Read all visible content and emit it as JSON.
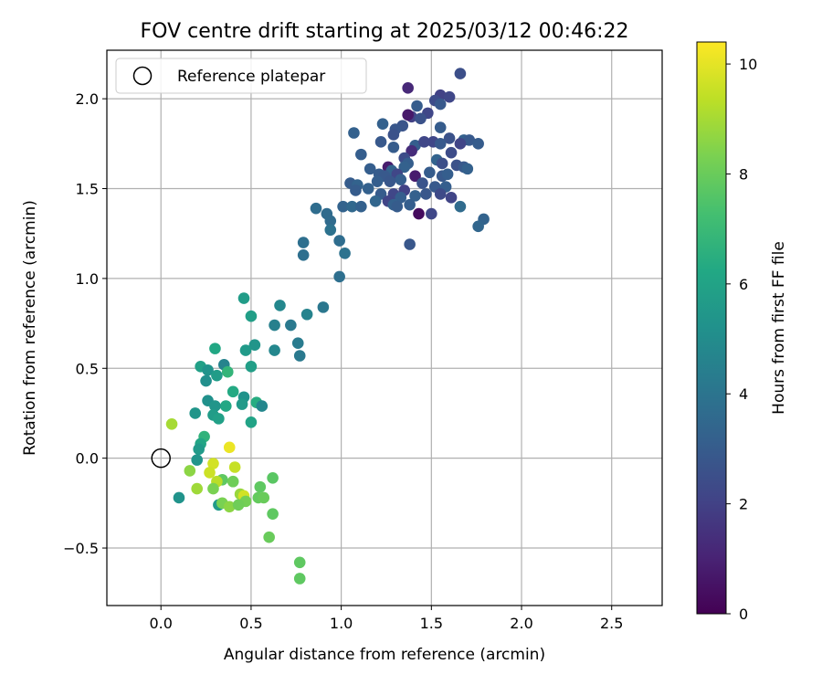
{
  "chart_data": {
    "type": "scatter",
    "title": "FOV centre drift starting at 2025/03/12 00:46:22",
    "xlabel": "Angular distance from reference (arcmin)",
    "ylabel": "Rotation from reference (arcmin)",
    "xlim": [
      -0.3,
      2.78
    ],
    "ylim": [
      -0.82,
      2.27
    ],
    "xticks": [
      0.0,
      0.5,
      1.0,
      1.5,
      2.0,
      2.5
    ],
    "xtick_labels": [
      "0.0",
      "0.5",
      "1.0",
      "1.5",
      "2.0",
      "2.5"
    ],
    "yticks": [
      -0.5,
      0.0,
      0.5,
      1.0,
      1.5,
      2.0
    ],
    "ytick_labels": [
      "−0.5",
      "0.0",
      "0.5",
      "1.0",
      "1.5",
      "2.0"
    ],
    "grid": true,
    "legend": {
      "placement": "top-left",
      "entries": [
        "Reference platepar"
      ]
    },
    "reference_point": {
      "x": 0.0,
      "y": 0.0
    },
    "colorbar": {
      "label": "Hours from first FF file",
      "colormap": "viridis",
      "range": [
        0,
        10.4
      ],
      "ticks": [
        0,
        2,
        4,
        6,
        8,
        10
      ],
      "tick_labels": [
        "0",
        "2",
        "4",
        "6",
        "8",
        "10"
      ]
    },
    "points": [
      [
        1.66,
        2.14,
        2.5
      ],
      [
        1.37,
        2.06,
        1.2
      ],
      [
        1.55,
        2.02,
        2.0
      ],
      [
        1.6,
        2.01,
        2.2
      ],
      [
        1.52,
        1.99,
        2.4
      ],
      [
        1.55,
        1.97,
        2.9
      ],
      [
        1.42,
        1.96,
        3.0
      ],
      [
        1.48,
        1.92,
        2.2
      ],
      [
        1.39,
        1.9,
        2.0
      ],
      [
        1.44,
        1.89,
        2.6
      ],
      [
        1.37,
        1.91,
        0.7
      ],
      [
        1.23,
        1.86,
        3.2
      ],
      [
        1.34,
        1.85,
        2.7
      ],
      [
        1.3,
        1.83,
        2.8
      ],
      [
        1.07,
        1.81,
        3.2
      ],
      [
        1.29,
        1.8,
        2.6
      ],
      [
        1.55,
        1.84,
        3.0
      ],
      [
        1.6,
        1.78,
        2.6
      ],
      [
        1.68,
        1.77,
        3.2
      ],
      [
        1.71,
        1.77,
        2.9
      ],
      [
        1.76,
        1.75,
        3.0
      ],
      [
        1.66,
        1.75,
        2.1
      ],
      [
        1.51,
        1.76,
        2.2
      ],
      [
        1.55,
        1.75,
        2.9
      ],
      [
        1.41,
        1.74,
        3.1
      ],
      [
        1.46,
        1.76,
        2.2
      ],
      [
        1.22,
        1.76,
        2.9
      ],
      [
        1.29,
        1.73,
        3.0
      ],
      [
        1.39,
        1.71,
        1.3
      ],
      [
        1.61,
        1.7,
        2.4
      ],
      [
        1.11,
        1.69,
        3.1
      ],
      [
        1.35,
        1.67,
        2.4
      ],
      [
        1.53,
        1.66,
        3.3
      ],
      [
        1.56,
        1.64,
        2.5
      ],
      [
        1.37,
        1.64,
        3.1
      ],
      [
        1.35,
        1.62,
        3.2
      ],
      [
        1.26,
        1.62,
        0.8
      ],
      [
        1.64,
        1.63,
        2.6
      ],
      [
        1.68,
        1.62,
        2.9
      ],
      [
        1.7,
        1.61,
        3.2
      ],
      [
        1.16,
        1.61,
        3.1
      ],
      [
        1.28,
        1.6,
        3.3
      ],
      [
        1.31,
        1.58,
        2.2
      ],
      [
        1.21,
        1.58,
        3.0
      ],
      [
        1.24,
        1.57,
        2.9
      ],
      [
        1.49,
        1.59,
        3.0
      ],
      [
        1.56,
        1.57,
        2.9
      ],
      [
        1.59,
        1.58,
        3.1
      ],
      [
        1.41,
        1.57,
        0.8
      ],
      [
        1.33,
        1.55,
        3.1
      ],
      [
        1.27,
        1.54,
        2.8
      ],
      [
        1.2,
        1.54,
        3.1
      ],
      [
        1.45,
        1.53,
        2.7
      ],
      [
        1.05,
        1.53,
        3.0
      ],
      [
        1.09,
        1.52,
        3.3
      ],
      [
        1.52,
        1.51,
        2.9
      ],
      [
        1.58,
        1.51,
        3.1
      ],
      [
        1.15,
        1.5,
        3.2
      ],
      [
        1.08,
        1.49,
        3.0
      ],
      [
        1.35,
        1.49,
        2.0
      ],
      [
        1.22,
        1.47,
        3.0
      ],
      [
        1.29,
        1.47,
        2.2
      ],
      [
        1.47,
        1.47,
        2.8
      ],
      [
        1.55,
        1.47,
        2.3
      ],
      [
        1.41,
        1.46,
        3.2
      ],
      [
        1.33,
        1.45,
        3.1
      ],
      [
        1.19,
        1.43,
        3.4
      ],
      [
        1.26,
        1.43,
        2.1
      ],
      [
        1.61,
        1.45,
        2.1
      ],
      [
        1.29,
        1.41,
        3.2
      ],
      [
        1.31,
        1.4,
        3.0
      ],
      [
        1.38,
        1.41,
        3.1
      ],
      [
        1.01,
        1.4,
        3.3
      ],
      [
        1.06,
        1.4,
        3.5
      ],
      [
        1.11,
        1.4,
        3.2
      ],
      [
        1.66,
        1.4,
        3.6
      ],
      [
        0.86,
        1.39,
        3.7
      ],
      [
        0.92,
        1.36,
        3.6
      ],
      [
        1.43,
        1.36,
        0.3
      ],
      [
        1.5,
        1.36,
        2.2
      ],
      [
        1.79,
        1.33,
        3.3
      ],
      [
        0.94,
        1.32,
        3.6
      ],
      [
        1.76,
        1.29,
        3.4
      ],
      [
        0.94,
        1.27,
        3.9
      ],
      [
        0.99,
        1.21,
        3.7
      ],
      [
        0.79,
        1.2,
        3.8
      ],
      [
        1.38,
        1.19,
        2.8
      ],
      [
        1.02,
        1.14,
        3.9
      ],
      [
        0.79,
        1.13,
        3.8
      ],
      [
        0.99,
        1.01,
        3.8
      ],
      [
        0.46,
        0.89,
        5.7
      ],
      [
        0.66,
        0.85,
        4.8
      ],
      [
        0.9,
        0.84,
        4.1
      ],
      [
        0.5,
        0.79,
        5.8
      ],
      [
        0.81,
        0.8,
        4.6
      ],
      [
        0.63,
        0.74,
        4.5
      ],
      [
        0.72,
        0.74,
        4.2
      ],
      [
        0.76,
        0.64,
        4.3
      ],
      [
        0.52,
        0.63,
        5.4
      ],
      [
        0.47,
        0.6,
        5.6
      ],
      [
        0.3,
        0.61,
        6.2
      ],
      [
        0.63,
        0.6,
        4.8
      ],
      [
        0.77,
        0.57,
        4.2
      ],
      [
        0.22,
        0.51,
        5.9
      ],
      [
        0.26,
        0.49,
        5.3
      ],
      [
        0.35,
        0.52,
        4.6
      ],
      [
        0.5,
        0.51,
        5.8
      ],
      [
        0.37,
        0.48,
        6.8
      ],
      [
        0.31,
        0.46,
        5.7
      ],
      [
        0.25,
        0.43,
        5.1
      ],
      [
        0.4,
        0.37,
        6.3
      ],
      [
        0.46,
        0.34,
        5.3
      ],
      [
        0.26,
        0.32,
        5.2
      ],
      [
        0.45,
        0.3,
        5.6
      ],
      [
        0.36,
        0.29,
        6.2
      ],
      [
        0.3,
        0.29,
        5.4
      ],
      [
        0.53,
        0.31,
        6.4
      ],
      [
        0.56,
        0.29,
        4.8
      ],
      [
        0.19,
        0.25,
        5.4
      ],
      [
        0.29,
        0.24,
        5.7
      ],
      [
        0.32,
        0.22,
        5.9
      ],
      [
        0.5,
        0.2,
        6.0
      ],
      [
        0.06,
        0.19,
        9.0
      ],
      [
        0.24,
        0.12,
        6.7
      ],
      [
        0.22,
        0.08,
        6.1
      ],
      [
        0.21,
        0.05,
        5.6
      ],
      [
        0.2,
        -0.01,
        5.4
      ],
      [
        0.38,
        0.06,
        10.1
      ],
      [
        0.29,
        -0.03,
        9.7
      ],
      [
        0.16,
        -0.07,
        8.6
      ],
      [
        0.41,
        -0.05,
        9.5
      ],
      [
        0.27,
        -0.08,
        9.6
      ],
      [
        0.34,
        -0.12,
        7.8
      ],
      [
        0.31,
        -0.13,
        9.3
      ],
      [
        0.4,
        -0.13,
        8.1
      ],
      [
        0.62,
        -0.11,
        7.7
      ],
      [
        0.2,
        -0.17,
        8.9
      ],
      [
        0.29,
        -0.17,
        8.3
      ],
      [
        0.55,
        -0.16,
        7.8
      ],
      [
        0.1,
        -0.22,
        5.3
      ],
      [
        0.44,
        -0.2,
        8.8
      ],
      [
        0.46,
        -0.21,
        9.7
      ],
      [
        0.47,
        -0.24,
        8.2
      ],
      [
        0.54,
        -0.22,
        7.9
      ],
      [
        0.57,
        -0.22,
        8.0
      ],
      [
        0.32,
        -0.26,
        5.6
      ],
      [
        0.34,
        -0.25,
        8.3
      ],
      [
        0.38,
        -0.27,
        8.6
      ],
      [
        0.43,
        -0.26,
        8.1
      ],
      [
        0.62,
        -0.31,
        7.8
      ],
      [
        0.6,
        -0.44,
        8.0
      ],
      [
        0.77,
        -0.58,
        7.8
      ],
      [
        0.77,
        -0.67,
        7.8
      ]
    ]
  }
}
